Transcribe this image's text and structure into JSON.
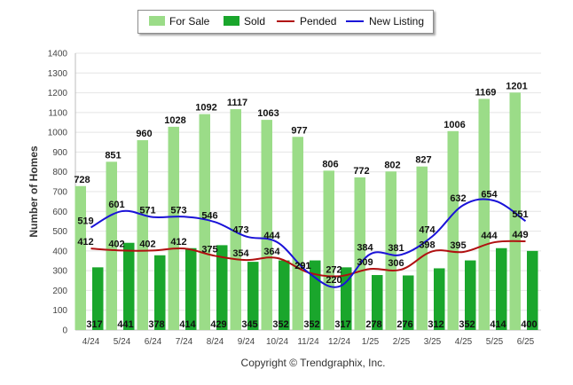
{
  "legend": {
    "for_sale": "For Sale",
    "sold": "Sold",
    "pended": "Pended",
    "new_listing": "New Listing"
  },
  "colors": {
    "for_sale": "#9bdc88",
    "sold": "#1aa62c",
    "pended": "#b01010",
    "new_listing": "#1a12d8"
  },
  "copyright": "Copyright © Trendgraphix, Inc.",
  "chart_data": {
    "type": "bar",
    "categories": [
      "4/24",
      "5/24",
      "6/24",
      "7/24",
      "8/24",
      "9/24",
      "10/24",
      "11/24",
      "12/24",
      "1/25",
      "2/25",
      "3/25",
      "4/25",
      "5/25",
      "6/25"
    ],
    "ylabel": "Number of Homes",
    "ylim": [
      0,
      1400
    ],
    "yticks": [
      0,
      100,
      200,
      300,
      400,
      500,
      600,
      700,
      800,
      900,
      1000,
      1100,
      1200,
      1300,
      1400
    ],
    "grid": true,
    "legend_position": "top-center",
    "series": [
      {
        "name": "For Sale",
        "kind": "bar",
        "values": [
          728,
          851,
          960,
          1028,
          1092,
          1117,
          1063,
          977,
          806,
          772,
          802,
          827,
          1006,
          1169,
          1201
        ]
      },
      {
        "name": "Sold",
        "kind": "bar",
        "values": [
          317,
          441,
          378,
          414,
          429,
          345,
          352,
          352,
          317,
          278,
          276,
          312,
          352,
          414,
          400
        ]
      },
      {
        "name": "Pended",
        "kind": "line",
        "values": [
          412,
          402,
          402,
          412,
          375,
          354,
          364,
          291,
          272,
          309,
          306,
          398,
          395,
          444,
          449
        ]
      },
      {
        "name": "New Listing",
        "kind": "line",
        "values": [
          519,
          601,
          571,
          573,
          546,
          473,
          444,
          291,
          220,
          384,
          381,
          474,
          632,
          654,
          551
        ]
      }
    ]
  }
}
